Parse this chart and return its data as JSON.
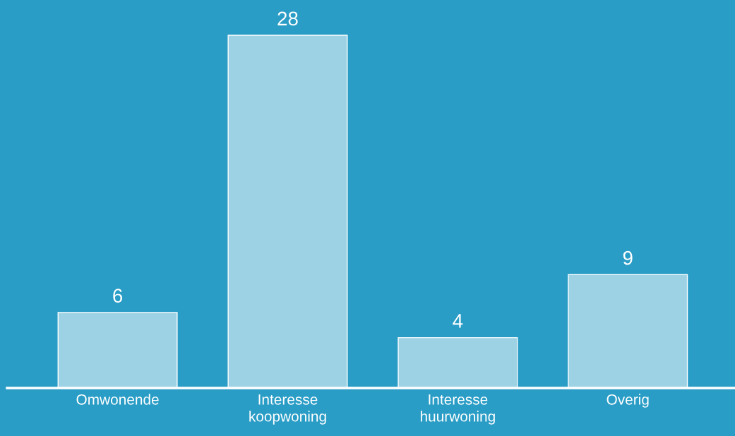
{
  "chart_data": {
    "type": "bar",
    "categories": [
      "Omwonende",
      "Interesse\nkoopwoning",
      "Interesse\nhuurwoning",
      "Overig"
    ],
    "values": [
      6,
      28,
      4,
      9
    ],
    "color": "#9dd2e5",
    "data_labels": true,
    "grid": false,
    "legend": false
  }
}
